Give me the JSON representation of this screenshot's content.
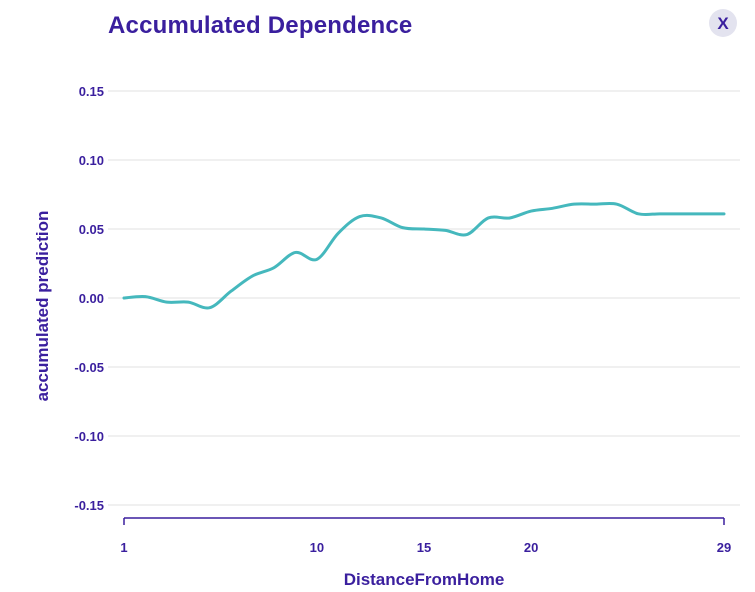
{
  "header": {
    "title": "Accumulated Dependence",
    "close_label": "X"
  },
  "colors": {
    "accent": "#3a1f9e",
    "line": "#45b8bd",
    "grid": "#e6e6e6",
    "close_bg": "#e3e3ef"
  },
  "chart_data": {
    "type": "line",
    "title": "Accumulated Dependence",
    "xlabel": "DistanceFromHome",
    "ylabel": "accumulated prediction",
    "xlim": [
      1,
      29
    ],
    "ylim": [
      -0.15,
      0.15
    ],
    "x_ticks": [
      1,
      10,
      15,
      20,
      29
    ],
    "y_ticks": [
      0.15,
      0.1,
      0.05,
      0.0,
      -0.05,
      -0.1,
      -0.15
    ],
    "y_tick_labels": [
      "0.15",
      "0.10",
      "0.05",
      "0.00",
      "-0.05",
      "-0.10",
      "-0.15"
    ],
    "grid": true,
    "legend": "none",
    "series": [
      {
        "x": [
          1,
          2,
          3,
          4,
          5,
          6,
          7,
          8,
          9,
          10,
          11,
          12,
          13,
          14,
          15,
          16,
          17,
          18,
          19,
          20,
          21,
          22,
          23,
          24,
          25,
          26,
          27,
          28,
          29
        ],
        "values": [
          0.0,
          0.001,
          -0.003,
          -0.003,
          -0.007,
          0.005,
          0.016,
          0.022,
          0.033,
          0.028,
          0.047,
          0.059,
          0.058,
          0.051,
          0.05,
          0.049,
          0.046,
          0.058,
          0.058,
          0.063,
          0.065,
          0.068,
          0.068,
          0.068,
          0.061,
          0.061,
          0.061,
          0.061,
          0.061
        ]
      }
    ]
  }
}
